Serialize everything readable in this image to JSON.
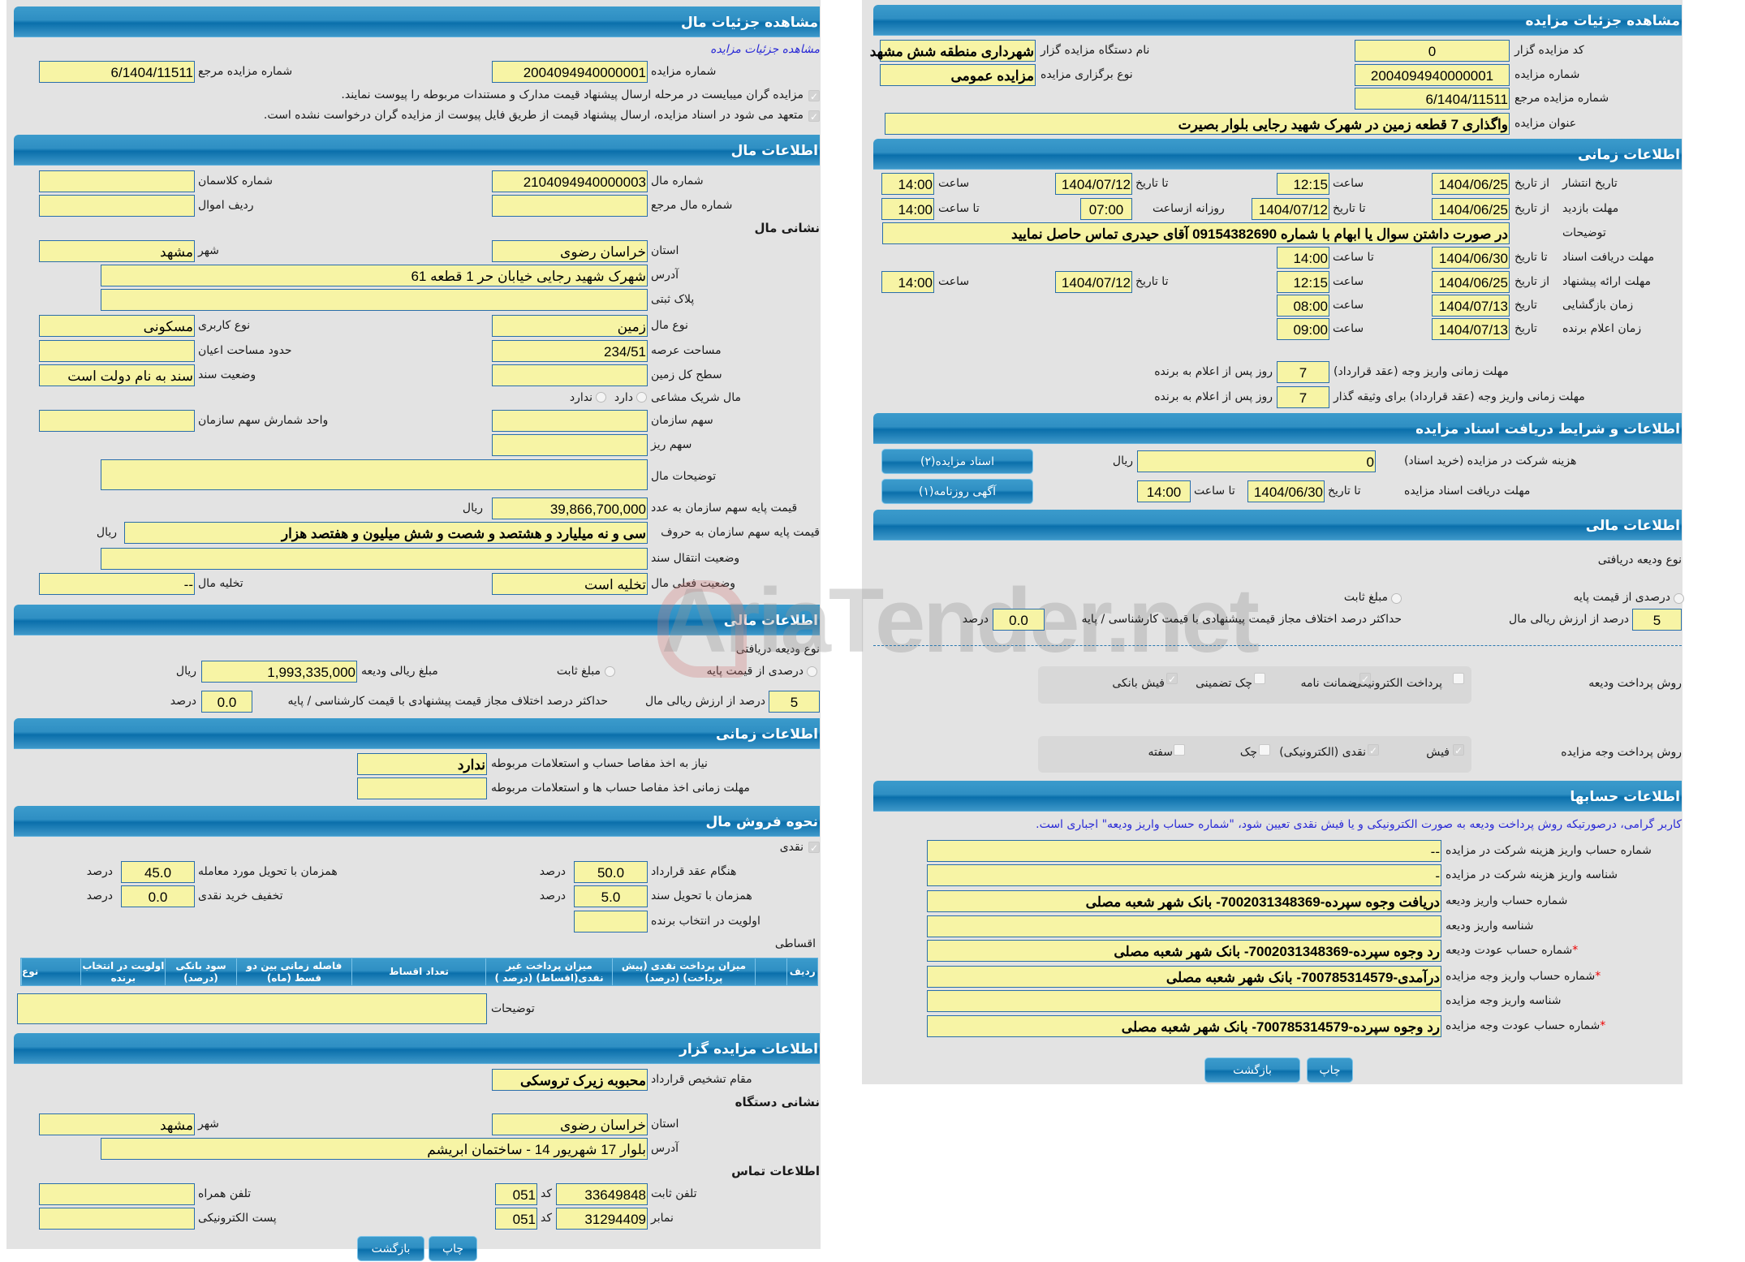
{
  "left": {
    "h1": "مشاهده جزئیات مال",
    "link": "مشاهده جزئیات مزایده",
    "auction_no_label": "شماره مزایده",
    "auction_no": "2004094940000001",
    "ref_no_label": "شماره مزایده مرجع",
    "ref_no": "6/1404/11511",
    "check1": "مزایده گران میبایست در مرحله ارسال پیشنهاد قیمت مدارک و مستندات مربوطه را پیوست نمایند.",
    "check2": "متعهد می شود در اسناد مزایده، ارسال پیشنهاد قیمت از طریق فایل پیوست از مزایده گران درخواست نشده است.",
    "h2": "اطلاعات مال",
    "item_no_label": "شماره مال",
    "item_no": "2104094940000003",
    "class_no_label": "شماره کلاسمان",
    "class_no": "",
    "item_ref_label": "شماره مال مرجع",
    "item_ref": "",
    "row_label": "ردیف اموال",
    "row": "",
    "address_title": "نشانی مال",
    "province_label": "استان",
    "province": "خراسان رضوی",
    "city_label": "شهر",
    "city": "مشهد",
    "address_label": "آدرس",
    "address": "شهرک شهید رجایی خیابان حر 1 قطعه 61",
    "plate_label": "پلاک ثبتی",
    "plate": "",
    "type_label": "نوع مال",
    "type": "زمین",
    "usage_label": "نوع کاربری",
    "usage": "مسکونی",
    "area_label": "مساحت عرصه",
    "area": "234/51",
    "building_label": "حدود مساحت اعیان",
    "building": "",
    "land_label": "سطح کل زمین",
    "land": "",
    "deed_label": "وضعیت سند",
    "deed": "سند به نام دولت است",
    "shared_label": "مال شریک مشاعی",
    "shared_yes": "دارد",
    "shared_no": "ندارد",
    "org_share_label": "سهم سازمان",
    "org_share": "",
    "share_unit_label": "واحد شمارش سهم سازمان",
    "share_unit": "",
    "sub_share_label": "سهم ریز",
    "sub_share": "",
    "desc_label": "توضیحات مال",
    "desc": "",
    "base_num_label": "قیمت پایه سهم سازمان به عدد",
    "base_num": "39,866,700,000",
    "rial": "ریال",
    "base_words_label": "قیمت پایه سهم سازمان به حروف",
    "base_words": "سی و نه میلیارد و هشتصد و شصت و شش میلیون و هفتصد هزار",
    "transfer_label": "وضعیت انتقال سند",
    "transfer": "",
    "status_label": "وضعیت فعلی مال",
    "status": "تخلیه است",
    "evac_label": "تخلیه مال",
    "evac": "--",
    "h3": "اطلاعات مالی",
    "deposit_type": "نوع ودیعه دریافتی",
    "pct_base": "درصدی از قیمت پایه",
    "fixed": "مبلغ ثابت",
    "deposit_amt_label": "مبلغ ریالی ودیعه",
    "deposit_amt": "1,993,335,000",
    "pct_value": "5",
    "pct_value_label": "درصد از ارزش ریالی مال",
    "max_diff_label": "حداکثر درصد اختلاف مجاز قیمت پیشنهادی با قیمت کارشناسی / پایه",
    "max_diff": "0.0",
    "percent": "درصد",
    "h4": "اطلاعات زمانی",
    "settle_label": "نیاز به اخذ مفاصا حساب و استعلامات مربوطه",
    "settle": "ندارد",
    "settle_deadline_label": "مهلت زمانی اخذ مفاصا حساب ها و استعلامات مربوطه",
    "settle_deadline": "",
    "h5": "نحوه فروش مال",
    "cash": "نقدی",
    "contract_label": "هنگام عقد قرارداد",
    "contract": "50.0",
    "delivery_label": "همزمان با تحویل مورد معامله",
    "delivery": "45.0",
    "deed_del_label": "همزمان با تحویل سند",
    "deed_del": "5.0",
    "discount_label": "تخفیف خرید نقدی",
    "discount": "0.0",
    "priority_label": "اولویت در انتخاب برنده",
    "priority": "",
    "installment": "اقساطی",
    "table_headers": [
      "ردیف",
      "",
      "میزان پرداخت نقدی (پیش پرداخت) (درصد)",
      "میزان پرداخت غیر نقدی(اقساط) (درصد )",
      "تعداد اقساط",
      "فاصله زمانی بین دو قسط (ماه)",
      "سود بانکی (درصد)",
      "اولویت در انتخاب برنده",
      "نوع"
    ],
    "notes_label": "توضیحات",
    "notes": "",
    "h6": "اطلاعات مزایده گزار",
    "authority_label": "مقام تشخیص قرارداد",
    "authority": "محبوبه زیرک تروسکی",
    "org_address_title": "نشانی دستگاه",
    "org_province": "خراسان رضوی",
    "org_city": "مشهد",
    "org_address": "بلوار 17 شهریور 14 - ساختمان ابریشم",
    "contact_title": "اطلاعات تماس",
    "phone_label": "تلفن ثابت",
    "phone": "33649848",
    "code_label": "کد",
    "phone_code": "051",
    "mobile_label": "تلفن همراه",
    "mobile": "",
    "fax_label": "نمابر",
    "fax": "31294409",
    "fax_code": "051",
    "email_label": "پست الکترونیکی",
    "email": "",
    "print": "چاپ",
    "back": "بازگشت"
  },
  "right": {
    "h1": "مشاهده جزئیات مزایده",
    "org_code_label": "کد مزایده گزار",
    "org_code": "0",
    "org_name_label": "نام دستگاه مزایده گزار",
    "org_name": "شهرداری منطقه شش مشهد",
    "auction_no_label": "شماره مزایده",
    "auction_no": "2004094940000001",
    "kind_label": "نوع برگزاری مزایده",
    "kind": "مزایده عمومی",
    "ref_label": "شماره مزایده مرجع",
    "ref": "6/1404/11511",
    "title_label": "عنوان مزایده",
    "title": "واگذاری 7 قطعه زمین در شهرک شهید رجایی بلوار بصیرت",
    "h2": "اطلاعات زمانی",
    "from_date": "از تاریخ",
    "to_date": "تا تاریخ",
    "hour": "ساعت",
    "to_hour": "تا ساعت",
    "date": "تاریخ",
    "daily_from": "روزانه ازساعت",
    "publish_label": "تاریخ انتشار",
    "publish": {
      "from": "1404/06/25",
      "from_time": "12:15",
      "to": "1404/07/12",
      "to_time": "14:00"
    },
    "visit_label": "مهلت بازدید",
    "visit": {
      "from": "1404/06/25",
      "to": "1404/07/12",
      "daily": "07:00",
      "to_time": "14:00"
    },
    "notes_label": "توضیحات",
    "notes": "در صورت داشتن سوال یا ابهام با شماره 09154382690 آقای حیدری تماس حاصل نمایید",
    "docs_label": "مهلت دریافت اسناد",
    "docs": {
      "to": "1404/06/30",
      "to_time": "14:00"
    },
    "offer_label": "مهلت ارائه پیشنهاد",
    "offer": {
      "from": "1404/06/25",
      "from_time": "12:15",
      "to": "1404/07/12",
      "to_time": "14:00"
    },
    "open_label": "زمان بازگشایی",
    "open": {
      "date": "1404/07/13",
      "time": "08:00"
    },
    "winner_label": "زمان اعلام برنده",
    "winner": {
      "date": "1404/07/13",
      "time": "09:00"
    },
    "pay_days_label": "مهلت زمانی واریز وجه (عقد قرارداد)",
    "pay_days": "7",
    "pay_days2_label": "مهلت زمانی واریز وجه (عقد قرارداد) برای وثیقه گذار",
    "pay_days2": "7",
    "days_after": "روز پس از اعلام به برنده",
    "h3": "اطلاعات و شرایط دریافت اسناد مزایده",
    "fee_label": "هزینه شرکت در مزایده (خرید اسناد)",
    "fee": "0",
    "rial": "ریال",
    "doc_deadline_label": "مهلت دریافت اسناد مزایده",
    "doc_deadline": "1404/06/30",
    "doc_deadline_time": "14:00",
    "docs_btn": "اسناد مزایده(۲)",
    "ad_btn": "آگهی روزنامه(۱)",
    "h4": "اطلاعات مالی",
    "deposit_type": "نوع ودیعه دریافتی",
    "pct_base": "درصدی از قیمت پایه",
    "fixed": "مبلغ ثابت",
    "pct_value": "5",
    "pct_value_label": "درصد از ارزش ریالی مال",
    "max_diff_label": "حداکثر درصد اختلاف مجاز قیمت پیشنهادی با قیمت کارشناسی / پایه",
    "max_diff": "0.0",
    "percent": "درصد",
    "deposit_method_label": "روش پرداخت ودیعه",
    "deposit_methods": [
      {
        "label": "پرداخت الکترونیکی",
        "checked": false
      },
      {
        "label": "ضمانت نامه",
        "checked": true
      },
      {
        "label": "چک تضمینی",
        "checked": false
      },
      {
        "label": "فیش بانکی",
        "checked": true
      }
    ],
    "payment_method_label": "روش پرداخت وجه مزایده",
    "payment_methods": [
      {
        "label": "فیش",
        "checked": true
      },
      {
        "label": "نقدی (الکترونیکی)",
        "checked": true
      },
      {
        "label": "چک",
        "checked": false
      },
      {
        "label": "سفته",
        "checked": false
      }
    ],
    "h5": "اطلاعات حسابها",
    "notice": "کاربر گرامی، درصورتیکه روش پرداخت ودیعه به صورت الکترونیکی و یا فیش نقدی تعیین شود، \"شماره حساب واریز ودیعه\" اجباری است.",
    "accounts": [
      {
        "label": "شماره حساب واریز هزینه شرکت در مزایده",
        "value": "--",
        "required": false
      },
      {
        "label": "شناسه واریز هزینه شرکت در مزایده",
        "value": "-",
        "required": false
      },
      {
        "label": "شماره حساب واریز ودیعه",
        "value": "دریافت وجوه سپرده-7002031348369- بانک شهر شعبه مصلی",
        "required": false
      },
      {
        "label": "شناسه واریز ودیعه",
        "value": "",
        "required": false
      },
      {
        "label": "شماره حساب عودت ودیعه",
        "value": "رد وجوه سپرده-7002031348369- بانک شهر شعبه مصلی",
        "required": true
      },
      {
        "label": "شماره حساب واریز وجه مزایده",
        "value": "درآمدی-700785314579- بانک شهر شعبه مصلی",
        "required": true
      },
      {
        "label": "شناسه واریز وجه مزایده",
        "value": "",
        "required": false
      },
      {
        "label": "شماره حساب عودت وجه مزایده",
        "value": "رد وجوه سپرده-700785314579- بانک شهر شعبه مصلی",
        "required": true
      }
    ],
    "required_mark": "*",
    "print": "چاپ",
    "back": "بازگشت"
  },
  "watermark": "AriaTender.net",
  "colors": {
    "header": "#0a6fab",
    "field": "#f7f4a5",
    "field_border": "#2a6eaa",
    "panel": "#e3e3e3",
    "link": "#2b2bd6",
    "required": "#e00000"
  }
}
